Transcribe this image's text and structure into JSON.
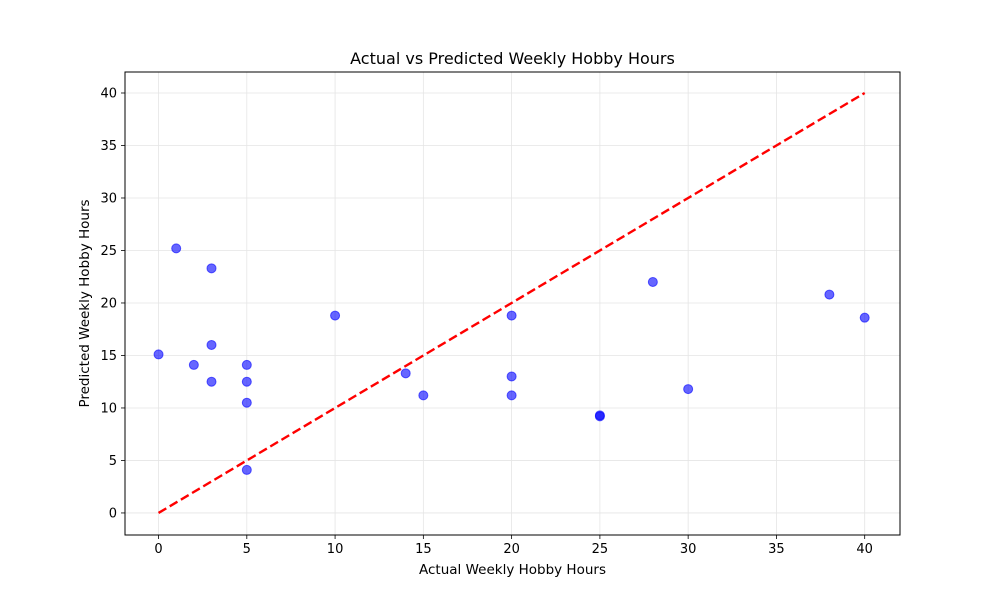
{
  "chart_data": {
    "type": "scatter",
    "title": "Actual vs Predicted Weekly Hobby Hours",
    "xlabel": "Actual Weekly Hobby Hours",
    "ylabel": "Predicted Weekly Hobby Hours",
    "xlim": [
      -1.9,
      42
    ],
    "ylim": [
      -2.1,
      42
    ],
    "xticks": [
      0,
      5,
      10,
      15,
      20,
      25,
      30,
      35,
      40
    ],
    "yticks": [
      0,
      5,
      10,
      15,
      20,
      25,
      30,
      35,
      40
    ],
    "grid": true,
    "points": [
      {
        "x": 0,
        "y": 15.1
      },
      {
        "x": 1,
        "y": 25.2
      },
      {
        "x": 2,
        "y": 14.1
      },
      {
        "x": 3,
        "y": 23.3
      },
      {
        "x": 3,
        "y": 16.0
      },
      {
        "x": 3,
        "y": 12.5
      },
      {
        "x": 5,
        "y": 14.1
      },
      {
        "x": 5,
        "y": 12.5
      },
      {
        "x": 5,
        "y": 10.5
      },
      {
        "x": 5,
        "y": 4.1
      },
      {
        "x": 10,
        "y": 18.8
      },
      {
        "x": 14,
        "y": 13.3
      },
      {
        "x": 15,
        "y": 11.2
      },
      {
        "x": 20,
        "y": 18.8
      },
      {
        "x": 20,
        "y": 13.0
      },
      {
        "x": 20,
        "y": 11.2
      },
      {
        "x": 25,
        "y": 9.3
      },
      {
        "x": 25,
        "y": 9.2
      },
      {
        "x": 28,
        "y": 22.0
      },
      {
        "x": 30,
        "y": 11.8
      },
      {
        "x": 38,
        "y": 20.8
      },
      {
        "x": 40,
        "y": 18.6
      }
    ],
    "reference_line": {
      "x": [
        0,
        40
      ],
      "y": [
        0,
        40
      ],
      "style": "dashed"
    },
    "colors": {
      "points": "#0000ff",
      "reference_line": "#ff0000",
      "grid": "#e5e5e5"
    }
  }
}
